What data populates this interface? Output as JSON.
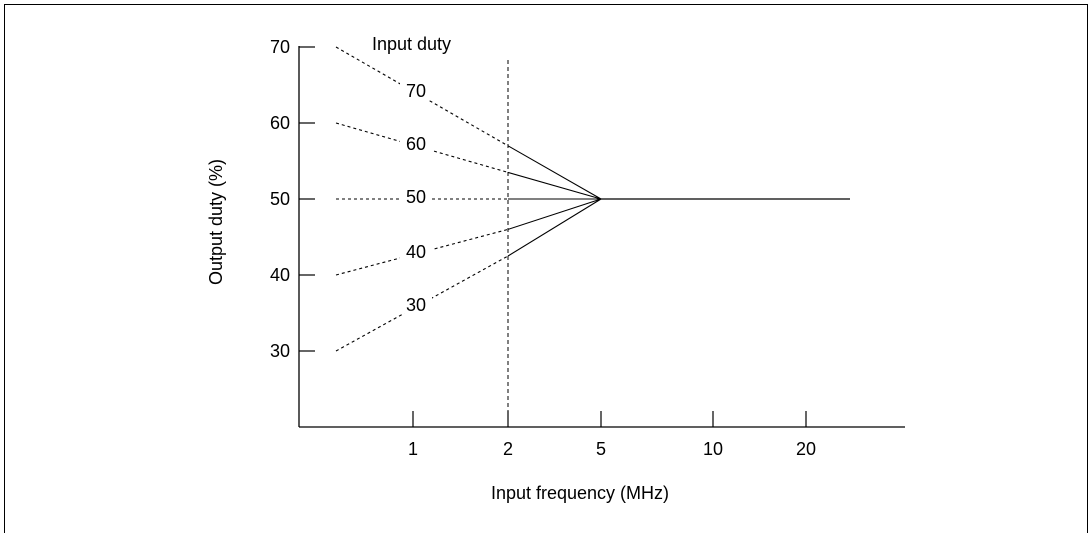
{
  "chart_data": {
    "type": "line",
    "xlabel": "Input frequency (MHz)",
    "ylabel": "Output duty (%)",
    "x_scale": "log",
    "x_ticks": [
      1,
      2,
      5,
      10,
      20
    ],
    "y_ticks": [
      30,
      40,
      50,
      60,
      70
    ],
    "ylim": [
      20,
      70
    ],
    "legend_title": "Input duty",
    "marker_line_x": 2,
    "series": [
      {
        "name": "70",
        "x": [
          0.6,
          2,
          5,
          27
        ],
        "values": [
          70,
          57,
          50,
          50
        ]
      },
      {
        "name": "60",
        "x": [
          0.6,
          2,
          5,
          27
        ],
        "values": [
          60,
          53.5,
          50,
          50
        ]
      },
      {
        "name": "50",
        "x": [
          0.6,
          2,
          5,
          27
        ],
        "values": [
          50,
          50,
          50,
          50
        ]
      },
      {
        "name": "40",
        "x": [
          0.6,
          2,
          5,
          27
        ],
        "values": [
          40,
          46,
          50,
          50
        ]
      },
      {
        "name": "30",
        "x": [
          0.6,
          2,
          5,
          27
        ],
        "values": [
          30,
          42.5,
          50,
          50
        ]
      }
    ],
    "grid": false
  }
}
